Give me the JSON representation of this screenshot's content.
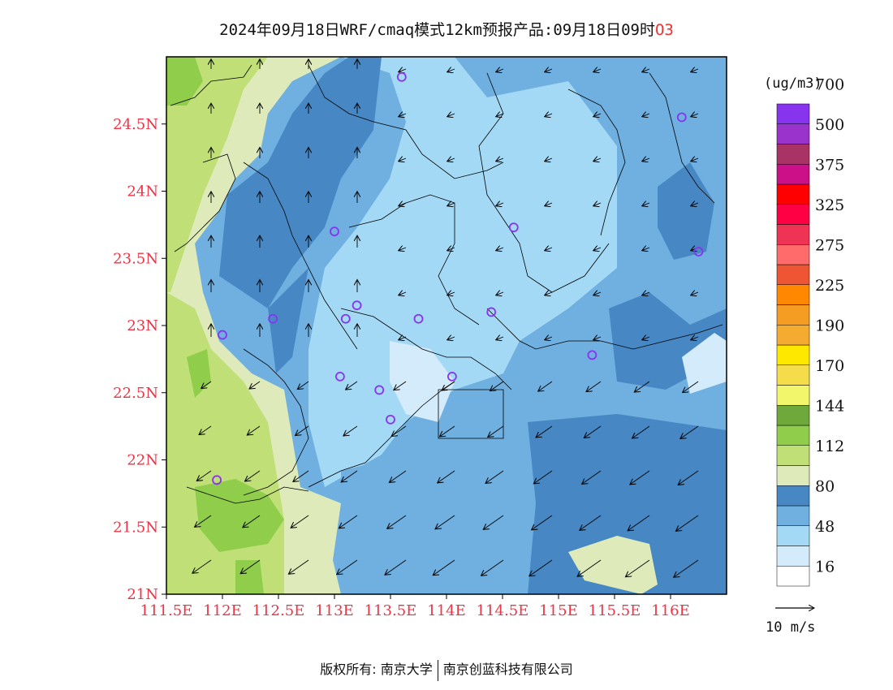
{
  "title": {
    "main": "2024年09月18日WRF/cmaq模式12km预报产品:09月18日09时",
    "species": "O3"
  },
  "map": {
    "lon_range": [
      111.5,
      116.5
    ],
    "lat_range": [
      21.0,
      25.0
    ],
    "lat_ticks": [
      {
        "value": 21.0,
        "label": "21N"
      },
      {
        "value": 21.5,
        "label": "21.5N"
      },
      {
        "value": 22.0,
        "label": "22N"
      },
      {
        "value": 22.5,
        "label": "22.5N"
      },
      {
        "value": 23.0,
        "label": "23N"
      },
      {
        "value": 23.5,
        "label": "23.5N"
      },
      {
        "value": 24.0,
        "label": "24N"
      },
      {
        "value": 24.5,
        "label": "24.5N"
      }
    ],
    "lon_ticks": [
      {
        "value": 111.5,
        "label": "111.5E"
      },
      {
        "value": 112.0,
        "label": "112E"
      },
      {
        "value": 112.5,
        "label": "112.5E"
      },
      {
        "value": 113.0,
        "label": "113E"
      },
      {
        "value": 113.5,
        "label": "113.5E"
      },
      {
        "value": 114.0,
        "label": "114E"
      },
      {
        "value": 114.5,
        "label": "114.5E"
      },
      {
        "value": 115.0,
        "label": "115E"
      },
      {
        "value": 115.5,
        "label": "115.5E"
      },
      {
        "value": 116.0,
        "label": "116E"
      }
    ],
    "stations": [
      [
        113.6,
        24.85
      ],
      [
        116.1,
        24.55
      ],
      [
        113.0,
        23.7
      ],
      [
        114.6,
        23.73
      ],
      [
        116.25,
        23.55
      ],
      [
        112.45,
        23.05
      ],
      [
        113.1,
        23.05
      ],
      [
        113.2,
        23.15
      ],
      [
        113.75,
        23.05
      ],
      [
        114.4,
        23.1
      ],
      [
        112.0,
        22.93
      ],
      [
        115.3,
        22.78
      ],
      [
        113.05,
        22.62
      ],
      [
        113.4,
        22.52
      ],
      [
        114.05,
        22.62
      ],
      [
        113.5,
        22.3
      ],
      [
        111.95,
        21.85
      ]
    ]
  },
  "legend": {
    "unit": "(ug/m3)",
    "colors": [
      "#ffffff",
      "#d4ebfb",
      "#a4d9f5",
      "#6fb0e1",
      "#4788c4",
      "#deeaba",
      "#c0e077",
      "#8fcd4b",
      "#6fa83b",
      "#f2f66a",
      "#f5dc4a",
      "#ffe800",
      "#f5aa30",
      "#f59d22",
      "#ff8800",
      "#ee5533",
      "#ff6a6a",
      "#ee3355",
      "#ff0044",
      "#ff0000",
      "#cc1188",
      "#aa3366",
      "#9933cc",
      "#8833ee"
    ],
    "labels": [
      "16",
      "48",
      "80",
      "112",
      "144",
      "170",
      "190",
      "225",
      "275",
      "325",
      "375",
      "500",
      "700"
    ],
    "wind_ref": "10 m/s"
  },
  "footer": {
    "left": "版权所有: 南京大学",
    "right": "南京创蓝科技有限公司"
  }
}
